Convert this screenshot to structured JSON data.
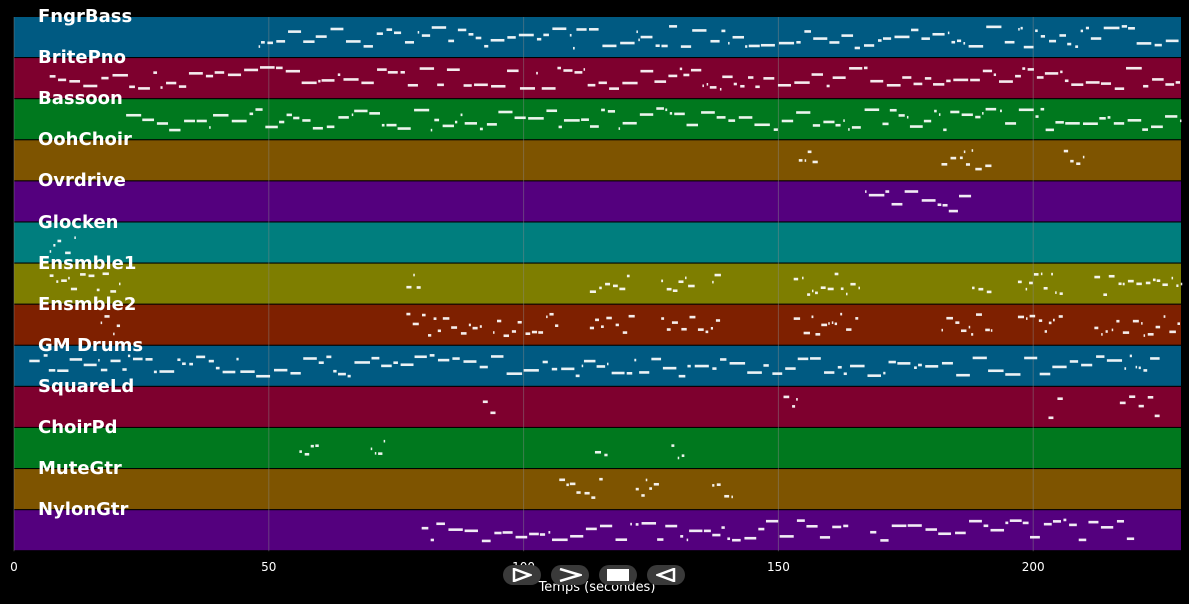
{
  "colors": {
    "background": "#000000",
    "notes": "#ffffff",
    "grid": "#888888"
  },
  "tracks": [
    {
      "name": "FngrBass",
      "color": "#005a82"
    },
    {
      "name": "BritePno",
      "color": "#7e002e"
    },
    {
      "name": "Bassoon",
      "color": "#00781e"
    },
    {
      "name": "OohChoir",
      "color": "#7e5400"
    },
    {
      "name": "Ovrdrive",
      "color": "#54007e"
    },
    {
      "name": "Glocken",
      "color": "#007e7e"
    },
    {
      "name": "Ensmble1",
      "color": "#7e7e00"
    },
    {
      "name": "Ensmble2",
      "color": "#7e2000"
    },
    {
      "name": "GM Drums",
      "color": "#005a82"
    },
    {
      "name": "SquareLd",
      "color": "#7e002e"
    },
    {
      "name": "ChoirPd",
      "color": "#00781e"
    },
    {
      "name": "MuteGtr",
      "color": "#7e5400"
    },
    {
      "name": "NylonGtr",
      "color": "#54007e"
    }
  ],
  "axis": {
    "xmin": 0,
    "xmax": 229,
    "ticks": [
      "0",
      "50",
      "100",
      "150",
      "200"
    ],
    "tick_values": [
      0,
      50,
      100,
      150,
      200
    ],
    "label": "Temps (secondes)"
  },
  "controls": [
    {
      "name": "play-button",
      "icon": "play-icon"
    },
    {
      "name": "forward-button",
      "icon": "forward-icon"
    },
    {
      "name": "stop-button",
      "icon": "stop-icon"
    },
    {
      "name": "back-button",
      "icon": "back-icon"
    }
  ]
}
